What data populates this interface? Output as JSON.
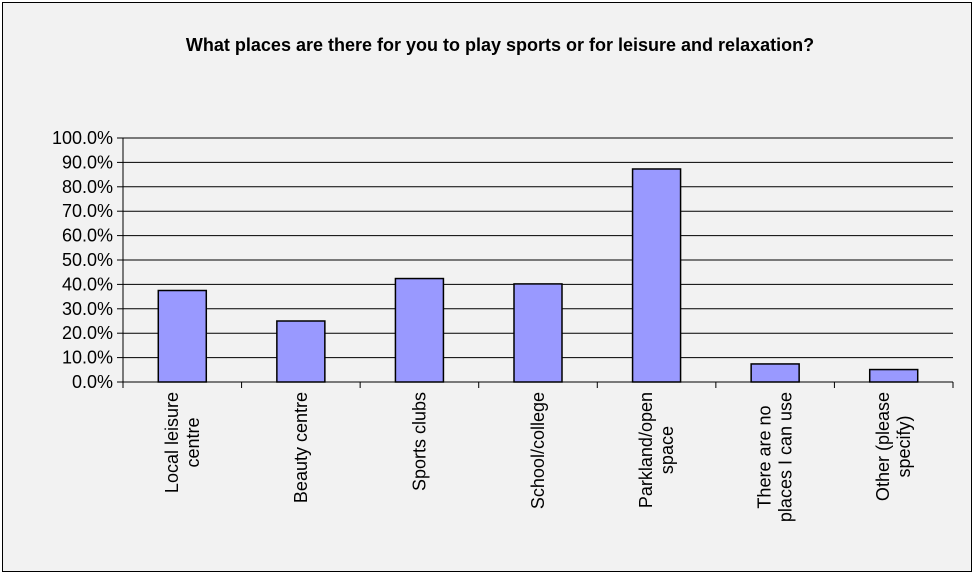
{
  "chart_data": {
    "type": "bar",
    "title": "What places are there for you to play sports or for leisure and relaxation?",
    "xlabel": "",
    "ylabel": "",
    "categories": [
      [
        "Local leisure",
        "centre"
      ],
      [
        "Beauty centre"
      ],
      [
        "Sports clubs"
      ],
      [
        "School/college"
      ],
      [
        "Parkland/open",
        "space"
      ],
      [
        "There are no",
        "places I can use"
      ],
      [
        "Other (please",
        "specify)"
      ]
    ],
    "values": [
      0.375,
      0.25,
      0.424,
      0.402,
      0.873,
      0.074,
      0.051
    ],
    "ylim": [
      0,
      1
    ],
    "ytick_step": 0.1,
    "y_tick_format": "percent-1dp",
    "grid": "horizontal",
    "legend": "none",
    "colors": {
      "bar_fill": "#9999ff",
      "bar_stroke": "#000000",
      "background": "#f2f2f2",
      "gridline": "#000000"
    }
  }
}
